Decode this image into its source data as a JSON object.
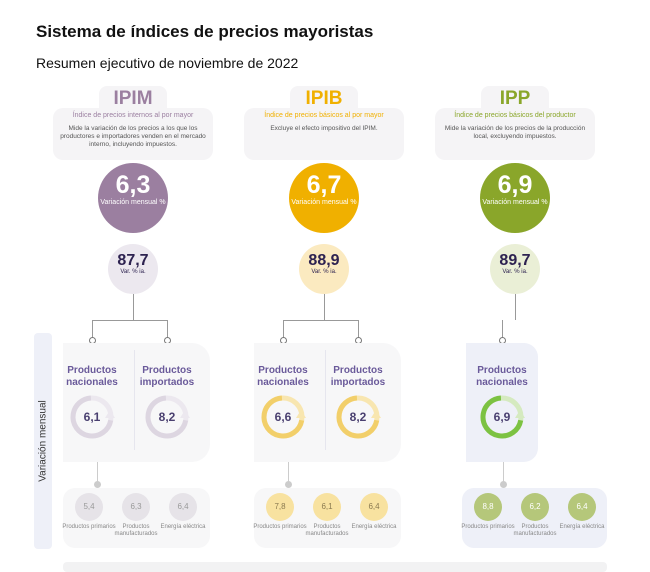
{
  "title": "Sistema de índices de precios mayoristas",
  "subtitle": "Resumen ejecutivo de noviembre de 2022",
  "side_label": "Variación mensual",
  "indices": [
    {
      "code": "IPIM",
      "name": "Índice de precios internos al por mayor",
      "description": "Mide la variación de los precios a los que los productores e importadores venden en el mercado interno, incluyendo impuestos.",
      "monthly": "6,3",
      "monthly_label": "Variación mensual %",
      "yearly": "87,7",
      "yearly_label": "Var. % ia.",
      "color": "#9b7fa0",
      "light": "#ece8ef",
      "ring_color": "#ddd6e1",
      "ring_light": "#ece8ef",
      "dot_color": "#e6e3e8",
      "dot_text": "#999",
      "products": [
        {
          "label": "Productos nacionales",
          "value": "6,1"
        },
        {
          "label": "Productos importados",
          "value": "8,2"
        }
      ],
      "breakdown": [
        {
          "value": "5,4",
          "label": "Productos primarios"
        },
        {
          "value": "6,3",
          "label": "Productos manufacturados"
        },
        {
          "value": "6,4",
          "label": "Energía eléctrica"
        }
      ]
    },
    {
      "code": "IPIB",
      "name": "Índice de precios básicos al por mayor",
      "description": "Excluye el efecto impositivo del IPIM.",
      "monthly": "6,7",
      "monthly_label": "Variación mensual %",
      "yearly": "88,9",
      "yearly_label": "Var. % ia.",
      "color": "#f0b000",
      "light": "#fbeac0",
      "ring_color": "#f2cf6a",
      "ring_light": "#f8e6b0",
      "dot_color": "#f8e2a0",
      "dot_text": "#8a7a50",
      "products": [
        {
          "label": "Productos nacionales",
          "value": "6,6"
        },
        {
          "label": "Productos importados",
          "value": "8,2"
        }
      ],
      "breakdown": [
        {
          "value": "7,8",
          "label": "Productos primarios"
        },
        {
          "value": "6,1",
          "label": "Productos manufacturados"
        },
        {
          "value": "6,4",
          "label": "Energía eléctrica"
        }
      ]
    },
    {
      "code": "IPP",
      "name": "Índice de precios básicos del productor",
      "description": "Mide la variación de los precios de la producción local, excluyendo impuestos.",
      "monthly": "6,9",
      "monthly_label": "Variación mensual %",
      "yearly": "89,7",
      "yearly_label": "Var. % ia.",
      "color": "#8aa62a",
      "light": "#eaefd6",
      "ring_color": "#7cc242",
      "ring_light": "#d5eac0",
      "dot_color": "#b5c77a",
      "dot_text": "#fff",
      "products": [
        {
          "label": "Productos nacionales",
          "value": "6,9"
        }
      ],
      "breakdown": [
        {
          "value": "8,8",
          "label": "Productos primarios"
        },
        {
          "value": "6,2",
          "label": "Productos manufacturados"
        },
        {
          "value": "6,4",
          "label": "Energía eléctrica"
        }
      ]
    }
  ]
}
